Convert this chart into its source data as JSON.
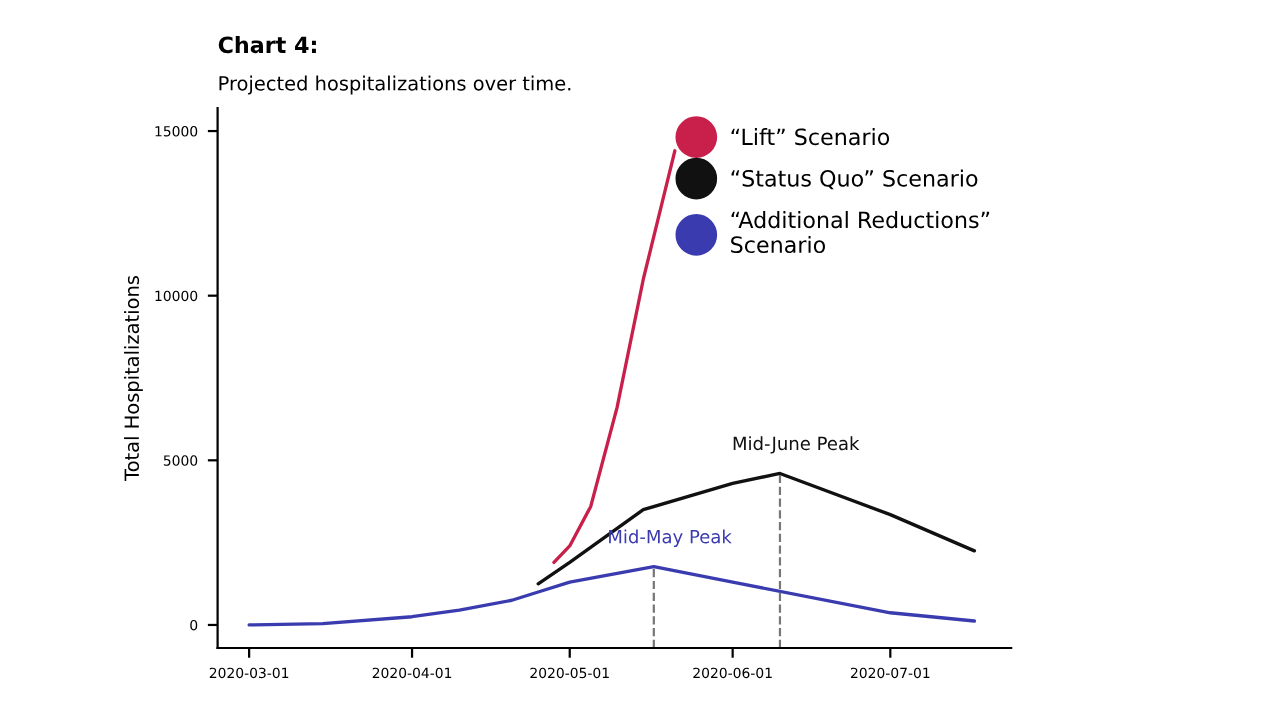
{
  "chart_data": {
    "type": "line",
    "title": "Chart 4:",
    "subtitle": "Projected hospitalizations over time.",
    "ylabel": "Total Hospitalizations",
    "series": [
      {
        "name": "“Lift” Scenario",
        "color": "#c8204a",
        "x": [
          "2020-04-28",
          "2020-05-01",
          "2020-05-05",
          "2020-05-10",
          "2020-05-15",
          "2020-05-21"
        ],
        "values": [
          1900,
          2400,
          3600,
          6600,
          10500,
          14400
        ]
      },
      {
        "name": "“Status Quo” Scenario",
        "color": "#111111",
        "x": [
          "2020-04-25",
          "2020-05-01",
          "2020-05-15",
          "2020-06-01",
          "2020-06-10",
          "2020-07-01",
          "2020-07-17"
        ],
        "values": [
          1250,
          1900,
          3500,
          4300,
          4600,
          3350,
          2250
        ]
      },
      {
        "name": "“Additional Reductions” Scenario",
        "color": "#3b3bb0",
        "x": [
          "2020-03-01",
          "2020-03-15",
          "2020-04-01",
          "2020-04-10",
          "2020-04-20",
          "2020-04-25",
          "2020-05-01",
          "2020-05-17",
          "2020-06-01",
          "2020-07-01",
          "2020-07-17"
        ],
        "values": [
          0,
          40,
          250,
          450,
          750,
          1000,
          1300,
          1770,
          1300,
          370,
          120
        ]
      }
    ],
    "annotations": [
      {
        "text": "Mid-May Peak",
        "x": "2020-05-17",
        "y": 1770
      },
      {
        "text": "Mid-June Peak",
        "x": "2020-06-10",
        "y": 4600
      }
    ],
    "xlim": [
      "2020-02-24",
      "2020-07-24"
    ],
    "xticks": [
      "2020-03-01",
      "2020-04-01",
      "2020-05-01",
      "2020-06-01",
      "2020-07-01"
    ],
    "ylim": [
      -700,
      15700
    ],
    "yticks": [
      0,
      5000,
      10000,
      15000
    ],
    "grid": false,
    "legend": "top right",
    "marker": "none",
    "line_style": "solid"
  }
}
